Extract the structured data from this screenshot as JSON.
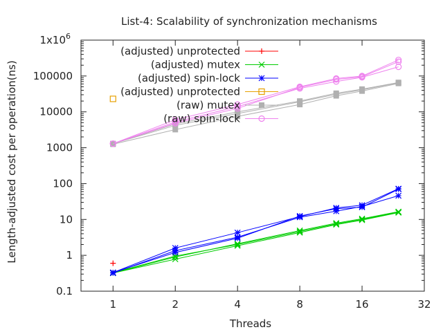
{
  "chart_data": {
    "type": "line",
    "title": "List-4: Scalability of synchronization mechanisms",
    "xlabel": "Threads",
    "ylabel": "Length-adjusted cost per operation(ns)",
    "xscale": "log2",
    "yscale": "log10",
    "xlim": [
      0.7,
      32
    ],
    "ylim": [
      0.1,
      1000000
    ],
    "xticks": [
      "1",
      "2",
      "4",
      "8",
      "16",
      "32"
    ],
    "yticks": [
      "0.1",
      "1",
      "10",
      "100",
      "1000",
      "10000",
      "100000",
      "1x10"
    ],
    "ytick_top_exp": "6",
    "grid": false,
    "legend_position": "top-left",
    "series": [
      {
        "name": "(adjusted) unprotected",
        "color": "#ff0000",
        "marker": "plus",
        "lines": [
          {
            "x": [
              1
            ],
            "y": [
              0.6
            ]
          }
        ]
      },
      {
        "name": "(adjusted) mutex",
        "color": "#00cc00",
        "marker": "x",
        "lines": [
          {
            "x": [
              1,
              2,
              4,
              8,
              12,
              16,
              24
            ],
            "y": [
              0.33,
              0.95,
              2.0,
              4.6,
              7.5,
              10,
              16
            ]
          },
          {
            "x": [
              1,
              2,
              4,
              8,
              12,
              16,
              24
            ],
            "y": [
              0.32,
              0.9,
              2.1,
              4.9,
              7.9,
              10.5,
              16.5
            ]
          },
          {
            "x": [
              1,
              2,
              4,
              8,
              12,
              16,
              24
            ],
            "y": [
              0.32,
              0.78,
              1.85,
              4.3,
              7.2,
              9.6,
              15.5
            ]
          }
        ]
      },
      {
        "name": "(adjusted) spin-lock",
        "color": "#0000ff",
        "marker": "star",
        "lines": [
          {
            "x": [
              1,
              2,
              4,
              8,
              12,
              16,
              24
            ],
            "y": [
              0.33,
              1.6,
              4.3,
              12,
              21,
              25,
              72
            ]
          },
          {
            "x": [
              1,
              2,
              4,
              8,
              12,
              16,
              24
            ],
            "y": [
              0.32,
              1.35,
              3.2,
              11.5,
              17,
              23,
              46
            ]
          },
          {
            "x": [
              1,
              2,
              4,
              8,
              12,
              16,
              24
            ],
            "y": [
              0.33,
              1.2,
              3.0,
              12.5,
              20,
              22,
              70
            ]
          }
        ]
      },
      {
        "name": "(adjusted) unprotected",
        "color": "#e6a000",
        "marker": "square",
        "lines": [
          {
            "x": [
              1
            ],
            "y": [
              23000
            ]
          }
        ]
      },
      {
        "name": "(raw) mutex",
        "color": "#b0b0b0",
        "marker": "filled-square",
        "lines": [
          {
            "x": [
              1,
              2,
              4,
              8,
              12,
              16,
              24
            ],
            "y": [
              1300,
              4200,
              9000,
              19000,
              31000,
              41000,
              65000
            ]
          },
          {
            "x": [
              1,
              2,
              4,
              8,
              12,
              16,
              24
            ],
            "y": [
              1250,
              3200,
              7500,
              16000,
              28000,
              38000,
              62000
            ]
          },
          {
            "x": [
              1,
              2,
              4,
              8,
              12,
              16,
              24
            ],
            "y": [
              1300,
              4600,
              10000,
              20000,
              33000,
              43000,
              66000
            ]
          }
        ]
      },
      {
        "name": "(raw) spin-lock",
        "color": "#ee82ee",
        "marker": "circle",
        "lines": [
          {
            "x": [
              1,
              2,
              4,
              8,
              12,
              16,
              24
            ],
            "y": [
              1300,
              6000,
              16000,
              50000,
              85000,
              100000,
              280000
            ]
          },
          {
            "x": [
              1,
              2,
              4,
              8,
              12,
              16,
              24
            ],
            "y": [
              1300,
              5200,
              14000,
              45000,
              70000,
              92000,
              180000
            ]
          },
          {
            "x": [
              1,
              2,
              4,
              8,
              12,
              16,
              24
            ],
            "y": [
              1300,
              4800,
              12500,
              48000,
              80000,
              95000,
              250000
            ]
          }
        ]
      }
    ]
  }
}
